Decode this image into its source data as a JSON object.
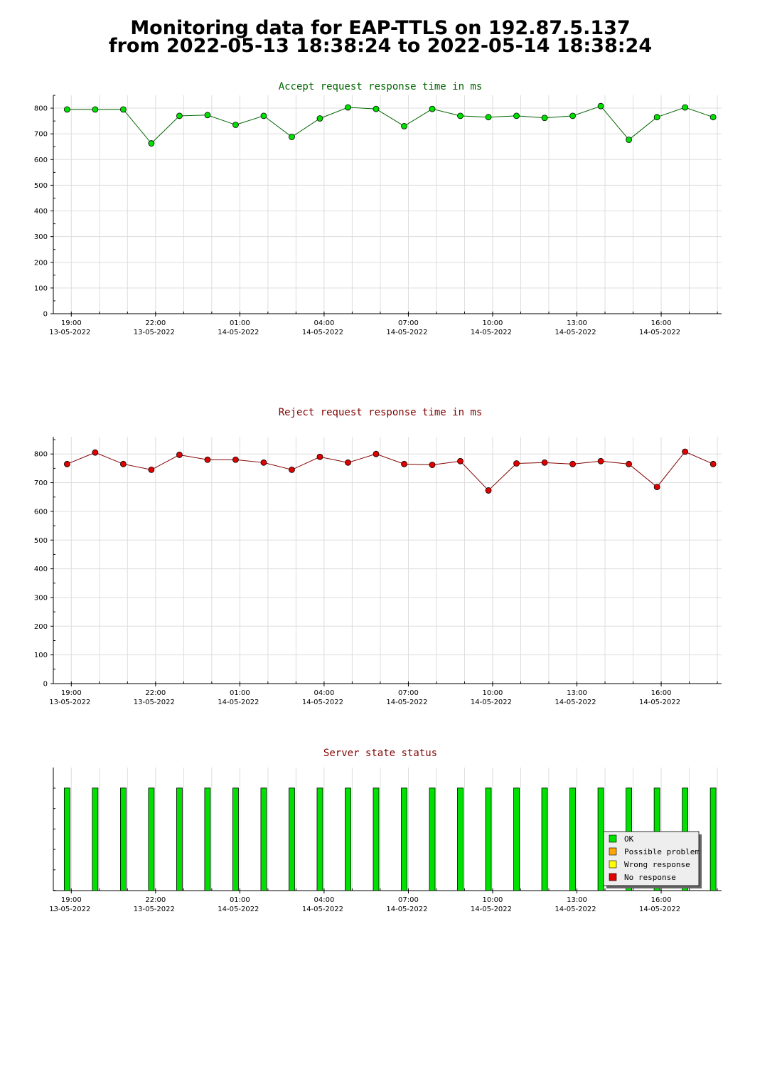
{
  "header": {
    "line1": "Monitoring data for EAP-TTLS on 192.87.5.137",
    "line2": "from 2022-05-13 18:38:24 to 2022-05-14 18:38:24"
  },
  "colors": {
    "accept_title": "#006400",
    "reject_title": "#800000",
    "status_title": "#800000",
    "accept_point": "#00e000",
    "accept_line": "#006400",
    "reject_point": "#e00000",
    "reject_line": "#800000",
    "ok": "#00e000",
    "possible_problem": "#ffa500",
    "wrong_response": "#ffff00",
    "no_response": "#e00000",
    "grid": "#dddddd"
  },
  "chart_data": [
    {
      "type": "line",
      "title": "Accept request response time in ms",
      "ylim": [
        0,
        850
      ],
      "yticks": [
        0,
        100,
        200,
        300,
        400,
        500,
        600,
        700,
        800
      ],
      "xlim": [
        -0.64,
        23.15
      ],
      "xticks": [
        {
          "x": 0,
          "time": "19:00",
          "date": "13-05-2022"
        },
        {
          "x": 3,
          "time": "22:00",
          "date": "13-05-2022"
        },
        {
          "x": 6,
          "time": "01:00",
          "date": "14-05-2022"
        },
        {
          "x": 9,
          "time": "04:00",
          "date": "14-05-2022"
        },
        {
          "x": 12,
          "time": "07:00",
          "date": "14-05-2022"
        },
        {
          "x": 15,
          "time": "10:00",
          "date": "14-05-2022"
        },
        {
          "x": 18,
          "time": "13:00",
          "date": "14-05-2022"
        },
        {
          "x": 21,
          "time": "16:00",
          "date": "14-05-2022"
        }
      ],
      "grid": true,
      "x": [
        -0.15,
        0.85,
        1.85,
        2.85,
        3.85,
        4.85,
        5.85,
        6.85,
        7.85,
        8.85,
        9.85,
        10.85,
        11.85,
        12.85,
        13.85,
        14.85,
        15.85,
        16.85,
        17.85,
        18.85,
        19.85,
        20.85,
        21.85,
        22.85
      ],
      "series": [
        {
          "values": [
            795,
            795,
            795,
            663,
            770,
            773,
            735,
            770,
            688,
            760,
            803,
            797,
            730,
            797,
            770,
            765,
            770,
            762,
            770,
            808,
            677,
            765,
            803,
            765
          ]
        }
      ]
    },
    {
      "type": "line",
      "title": "Reject request response time in ms",
      "ylim": [
        0,
        860
      ],
      "yticks": [
        0,
        100,
        200,
        300,
        400,
        500,
        600,
        700,
        800
      ],
      "xlim": [
        -0.64,
        23.15
      ],
      "xticks": [
        {
          "x": 0,
          "time": "19:00",
          "date": "13-05-2022"
        },
        {
          "x": 3,
          "time": "22:00",
          "date": "13-05-2022"
        },
        {
          "x": 6,
          "time": "01:00",
          "date": "14-05-2022"
        },
        {
          "x": 9,
          "time": "04:00",
          "date": "14-05-2022"
        },
        {
          "x": 12,
          "time": "07:00",
          "date": "14-05-2022"
        },
        {
          "x": 15,
          "time": "10:00",
          "date": "14-05-2022"
        },
        {
          "x": 18,
          "time": "13:00",
          "date": "14-05-2022"
        },
        {
          "x": 21,
          "time": "16:00",
          "date": "14-05-2022"
        }
      ],
      "grid": true,
      "x": [
        -0.15,
        0.85,
        1.85,
        2.85,
        3.85,
        4.85,
        5.85,
        6.85,
        7.85,
        8.85,
        9.85,
        10.85,
        11.85,
        12.85,
        13.85,
        14.85,
        15.85,
        16.85,
        17.85,
        18.85,
        19.85,
        20.85,
        21.85,
        22.85
      ],
      "series": [
        {
          "values": [
            765,
            805,
            765,
            745,
            797,
            780,
            780,
            770,
            745,
            790,
            770,
            800,
            765,
            762,
            775,
            673,
            767,
            770,
            765,
            775,
            765,
            685,
            808,
            765
          ]
        }
      ]
    },
    {
      "type": "bar",
      "title": "Server state status",
      "ylim": [
        0,
        1.2
      ],
      "xlim": [
        -0.64,
        23.15
      ],
      "xticks": [
        {
          "x": 0,
          "time": "19:00",
          "date": "13-05-2022"
        },
        {
          "x": 3,
          "time": "22:00",
          "date": "13-05-2022"
        },
        {
          "x": 6,
          "time": "01:00",
          "date": "14-05-2022"
        },
        {
          "x": 9,
          "time": "04:00",
          "date": "14-05-2022"
        },
        {
          "x": 12,
          "time": "07:00",
          "date": "14-05-2022"
        },
        {
          "x": 15,
          "time": "10:00",
          "date": "14-05-2022"
        },
        {
          "x": 18,
          "time": "13:00",
          "date": "14-05-2022"
        },
        {
          "x": 21,
          "time": "16:00",
          "date": "14-05-2022"
        }
      ],
      "x": [
        -0.15,
        0.85,
        1.85,
        2.85,
        3.85,
        4.85,
        5.85,
        6.85,
        7.85,
        8.85,
        9.85,
        10.85,
        11.85,
        12.85,
        13.85,
        14.85,
        15.85,
        16.85,
        17.85,
        18.85,
        19.85,
        20.85,
        21.85,
        22.85
      ],
      "values": [
        1,
        1,
        1,
        1,
        1,
        1,
        1,
        1,
        1,
        1,
        1,
        1,
        1,
        1,
        1,
        1,
        1,
        1,
        1,
        1,
        1,
        1,
        1,
        1
      ],
      "state": "OK",
      "legend": [
        {
          "label": "OK",
          "color": "#00e000"
        },
        {
          "label": "Possible problem",
          "color": "#ffa500"
        },
        {
          "label": "Wrong response",
          "color": "#ffff00"
        },
        {
          "label": "No response",
          "color": "#e00000"
        }
      ],
      "legend_position": "bottom-right"
    }
  ]
}
